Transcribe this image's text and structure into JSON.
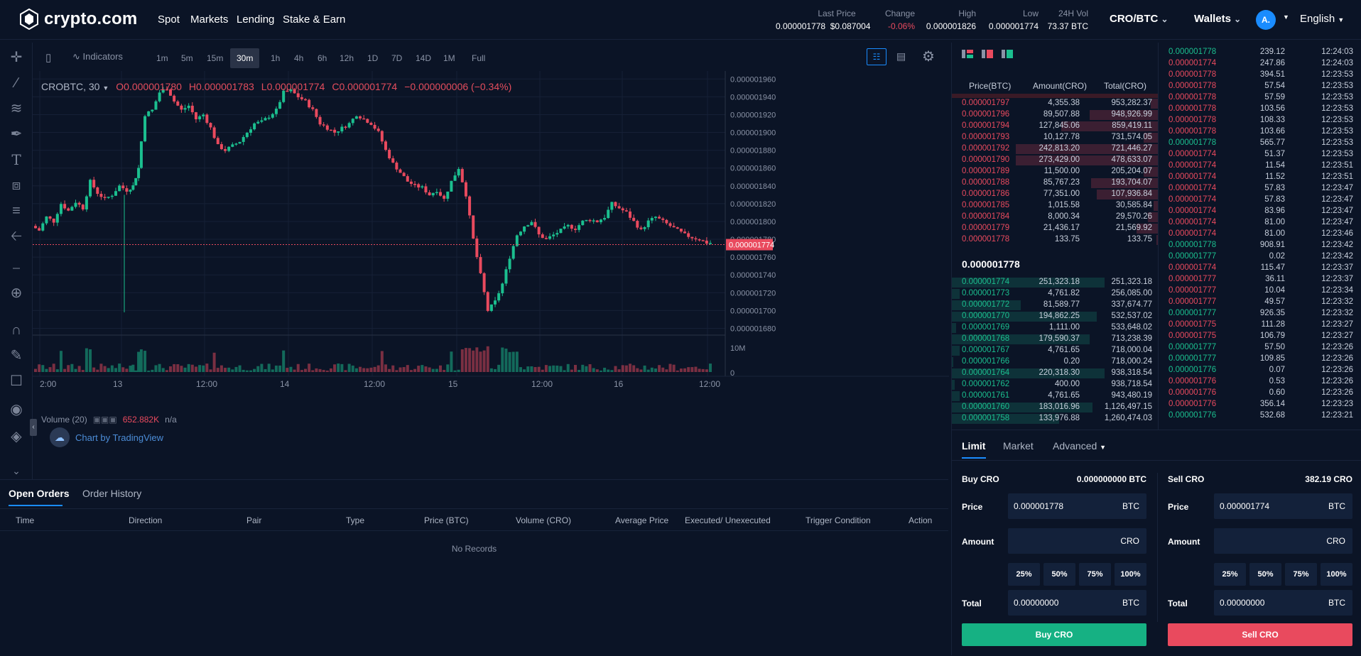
{
  "header": {
    "logo_text": "crypto.com",
    "nav": [
      "Spot",
      "Markets",
      "Lending",
      "Stake & Earn"
    ],
    "last_price_label": "Last Price",
    "last_price_btc": "0.000001778",
    "last_price_usd": "$0.087004",
    "change_label": "Change",
    "change_value": "-0.06%",
    "high_label": "High",
    "high_value": "0.000001826",
    "low_label": "Low",
    "low_value": "0.000001774",
    "vol_label": "24H Vol",
    "vol_value": "73.37 BTC",
    "pair": "CRO/BTC",
    "wallets": "Wallets",
    "avatar": "A.",
    "language": "English"
  },
  "chart_toolbar": {
    "indicators": "Indicators",
    "timeframes": [
      "1m",
      "5m",
      "15m",
      "30m",
      "1h",
      "4h",
      "6h",
      "12h",
      "1D",
      "7D",
      "14D",
      "1M",
      "Full"
    ],
    "active_timeframe": "30m"
  },
  "chart": {
    "symbol": "CROBTC, 30",
    "o": "O0.000001780",
    "h": "H0.000001783",
    "l": "L0.000001774",
    "c": "C0.000001774",
    "chg": "−0.000000006 (−0.34%)",
    "volume_label": "Volume (20)",
    "volume_value": "652.882K",
    "volume_na": "n/a",
    "tradingview": "Chart by TradingView",
    "current_price_tag": "0.000001774"
  },
  "chart_data": {
    "type": "candlestick",
    "y_ticks": [
      "0.000001960",
      "0.000001940",
      "0.000001920",
      "0.000001900",
      "0.000001880",
      "0.000001860",
      "0.000001840",
      "0.000001820",
      "0.000001800",
      "0.000001780",
      "0.000001760",
      "0.000001740",
      "0.000001720",
      "0.000001700",
      "0.000001680"
    ],
    "ylim": [
      1.67e-06,
      1.965e-06
    ],
    "x_ticks": [
      "2:00",
      "13",
      "12:00",
      "14",
      "12:00",
      "15",
      "12:00",
      "16",
      "12:00"
    ],
    "volume_ticks": [
      "10M",
      "0"
    ],
    "close_path": [
      [
        0,
        1.795
      ],
      [
        4,
        1.79
      ],
      [
        8,
        1.805
      ],
      [
        12,
        1.8
      ],
      [
        16,
        1.82
      ],
      [
        20,
        1.812
      ],
      [
        24,
        1.822
      ],
      [
        28,
        1.815
      ],
      [
        32,
        1.845
      ],
      [
        36,
        1.832
      ],
      [
        40,
        1.825
      ],
      [
        44,
        1.83
      ],
      [
        48,
        1.84
      ],
      [
        52,
        1.835
      ],
      [
        55,
        1.84
      ],
      [
        58,
        1.86
      ],
      [
        62,
        1.92
      ],
      [
        66,
        1.925
      ],
      [
        70,
        1.945
      ],
      [
        74,
        1.95
      ],
      [
        78,
        1.935
      ],
      [
        82,
        1.925
      ],
      [
        86,
        1.93
      ],
      [
        90,
        1.915
      ],
      [
        94,
        1.92
      ],
      [
        98,
        1.905
      ],
      [
        102,
        1.885
      ],
      [
        106,
        1.88
      ],
      [
        110,
        1.885
      ],
      [
        114,
        1.89
      ],
      [
        118,
        1.9
      ],
      [
        122,
        1.91
      ],
      [
        126,
        1.912
      ],
      [
        130,
        1.918
      ],
      [
        134,
        1.925
      ],
      [
        138,
        1.945
      ],
      [
        142,
        1.947
      ],
      [
        146,
        1.94
      ],
      [
        150,
        1.935
      ],
      [
        154,
        1.925
      ],
      [
        158,
        1.91
      ],
      [
        162,
        1.905
      ],
      [
        166,
        1.9
      ],
      [
        170,
        1.905
      ],
      [
        174,
        1.91
      ],
      [
        178,
        1.92
      ],
      [
        182,
        1.915
      ],
      [
        186,
        1.91
      ],
      [
        190,
        1.9
      ],
      [
        194,
        1.88
      ],
      [
        198,
        1.865
      ],
      [
        202,
        1.855
      ],
      [
        206,
        1.845
      ],
      [
        210,
        1.84
      ],
      [
        214,
        1.838
      ],
      [
        218,
        1.83
      ],
      [
        222,
        1.835
      ],
      [
        226,
        1.825
      ],
      [
        230,
        1.845
      ],
      [
        234,
        1.86
      ],
      [
        238,
        1.83
      ],
      [
        242,
        1.78
      ],
      [
        246,
        1.74
      ],
      [
        250,
        1.7
      ],
      [
        254,
        1.71
      ],
      [
        258,
        1.73
      ],
      [
        262,
        1.76
      ],
      [
        266,
        1.785
      ],
      [
        270,
        1.795
      ],
      [
        274,
        1.8
      ],
      [
        278,
        1.785
      ],
      [
        282,
        1.78
      ],
      [
        286,
        1.785
      ],
      [
        290,
        1.79
      ],
      [
        294,
        1.795
      ],
      [
        298,
        1.792
      ],
      [
        302,
        1.8
      ],
      [
        306,
        1.802
      ],
      [
        310,
        1.8
      ],
      [
        314,
        1.805
      ],
      [
        318,
        1.82
      ],
      [
        322,
        1.815
      ],
      [
        326,
        1.81
      ],
      [
        330,
        1.8
      ],
      [
        334,
        1.79
      ],
      [
        338,
        1.8
      ],
      [
        342,
        1.805
      ],
      [
        346,
        1.8
      ],
      [
        350,
        1.795
      ],
      [
        354,
        1.79
      ],
      [
        358,
        1.785
      ],
      [
        362,
        1.782
      ],
      [
        366,
        1.78
      ],
      [
        370,
        1.776
      ]
    ]
  },
  "bottom_panel": {
    "tabs": [
      "Open Orders",
      "Order History"
    ],
    "columns": [
      "Time",
      "Direction",
      "Pair",
      "Type",
      "Price (BTC)",
      "Volume (CRO)",
      "Average Price",
      "Executed/ Unexecuted",
      "Trigger Condition",
      "Action"
    ],
    "empty": "No Records"
  },
  "orderbook": {
    "headers": [
      "Price(BTC)",
      "Amount(CRO)",
      "Total(CRO)"
    ],
    "asks": [
      {
        "p": "0.000001797",
        "a": "4,355.38",
        "t": "953,282.37",
        "d": 0.05
      },
      {
        "p": "0.000001796",
        "a": "89,507.88",
        "t": "948,926.99",
        "d": 0.48
      },
      {
        "p": "0.000001794",
        "a": "127,845.06",
        "t": "859,419.11",
        "d": 0.68
      },
      {
        "p": "0.000001793",
        "a": "10,127.78",
        "t": "731,574.05",
        "d": 0.1
      },
      {
        "p": "0.000001792",
        "a": "242,813.20",
        "t": "721,446.27",
        "d": 1.0
      },
      {
        "p": "0.000001790",
        "a": "273,429.00",
        "t": "478,633.07",
        "d": 1.0
      },
      {
        "p": "0.000001789",
        "a": "11,500.00",
        "t": "205,204.07",
        "d": 0.1
      },
      {
        "p": "0.000001788",
        "a": "85,767.23",
        "t": "193,704.07",
        "d": 0.47
      },
      {
        "p": "0.000001786",
        "a": "77,351.00",
        "t": "107,936.84",
        "d": 0.43
      },
      {
        "p": "0.000001785",
        "a": "1,015.58",
        "t": "30,585.84",
        "d": 0.03
      },
      {
        "p": "0.000001784",
        "a": "8,000.34",
        "t": "29,570.26",
        "d": 0.07
      },
      {
        "p": "0.000001779",
        "a": "21,436.17",
        "t": "21,569.92",
        "d": 0.15
      },
      {
        "p": "0.000001778",
        "a": "133.75",
        "t": "133.75",
        "d": 0.01
      }
    ],
    "mid_price": "0.000001778",
    "bids": [
      {
        "p": "0.000001774",
        "a": "251,323.18",
        "t": "251,323.18",
        "d": 1.0
      },
      {
        "p": "0.000001773",
        "a": "4,761.82",
        "t": "256,085.00",
        "d": 0.05
      },
      {
        "p": "0.000001772",
        "a": "81,589.77",
        "t": "337,674.77",
        "d": 0.45
      },
      {
        "p": "0.000001770",
        "a": "194,862.25",
        "t": "532,537.02",
        "d": 0.95
      },
      {
        "p": "0.000001769",
        "a": "1,111.00",
        "t": "533,648.02",
        "d": 0.03
      },
      {
        "p": "0.000001768",
        "a": "179,590.37",
        "t": "713,238.39",
        "d": 0.9
      },
      {
        "p": "0.000001767",
        "a": "4,761.65",
        "t": "718,000.04",
        "d": 0.05
      },
      {
        "p": "0.000001766",
        "a": "0.20",
        "t": "718,000.24",
        "d": 0.01
      },
      {
        "p": "0.000001764",
        "a": "220,318.30",
        "t": "938,318.54",
        "d": 1.0
      },
      {
        "p": "0.000001762",
        "a": "400.00",
        "t": "938,718.54",
        "d": 0.02
      },
      {
        "p": "0.000001761",
        "a": "4,761.65",
        "t": "943,480.19",
        "d": 0.05
      },
      {
        "p": "0.000001760",
        "a": "183,016.96",
        "t": "1,126,497.15",
        "d": 0.92
      },
      {
        "p": "0.000001758",
        "a": "133,976.88",
        "t": "1,260,474.03",
        "d": 0.7
      }
    ]
  },
  "trades": [
    {
      "p": "0.000001778",
      "a": "239.12",
      "t": "12:24:03",
      "s": "buy"
    },
    {
      "p": "0.000001774",
      "a": "247.86",
      "t": "12:24:03",
      "s": "sell"
    },
    {
      "p": "0.000001778",
      "a": "394.51",
      "t": "12:23:53",
      "s": "sell"
    },
    {
      "p": "0.000001778",
      "a": "57.54",
      "t": "12:23:53",
      "s": "sell"
    },
    {
      "p": "0.000001778",
      "a": "57.59",
      "t": "12:23:53",
      "s": "sell"
    },
    {
      "p": "0.000001778",
      "a": "103.56",
      "t": "12:23:53",
      "s": "sell"
    },
    {
      "p": "0.000001778",
      "a": "108.33",
      "t": "12:23:53",
      "s": "sell"
    },
    {
      "p": "0.000001778",
      "a": "103.66",
      "t": "12:23:53",
      "s": "sell"
    },
    {
      "p": "0.000001778",
      "a": "565.77",
      "t": "12:23:53",
      "s": "buy"
    },
    {
      "p": "0.000001774",
      "a": "51.37",
      "t": "12:23:53",
      "s": "sell"
    },
    {
      "p": "0.000001774",
      "a": "11.54",
      "t": "12:23:51",
      "s": "sell"
    },
    {
      "p": "0.000001774",
      "a": "11.52",
      "t": "12:23:51",
      "s": "sell"
    },
    {
      "p": "0.000001774",
      "a": "57.83",
      "t": "12:23:47",
      "s": "sell"
    },
    {
      "p": "0.000001774",
      "a": "57.83",
      "t": "12:23:47",
      "s": "sell"
    },
    {
      "p": "0.000001774",
      "a": "83.96",
      "t": "12:23:47",
      "s": "sell"
    },
    {
      "p": "0.000001774",
      "a": "81.00",
      "t": "12:23:47",
      "s": "sell"
    },
    {
      "p": "0.000001774",
      "a": "81.00",
      "t": "12:23:46",
      "s": "sell"
    },
    {
      "p": "0.000001778",
      "a": "908.91",
      "t": "12:23:42",
      "s": "buy"
    },
    {
      "p": "0.000001777",
      "a": "0.02",
      "t": "12:23:42",
      "s": "buy"
    },
    {
      "p": "0.000001774",
      "a": "115.47",
      "t": "12:23:37",
      "s": "sell"
    },
    {
      "p": "0.000001777",
      "a": "36.11",
      "t": "12:23:37",
      "s": "sell"
    },
    {
      "p": "0.000001777",
      "a": "10.04",
      "t": "12:23:34",
      "s": "sell"
    },
    {
      "p": "0.000001777",
      "a": "49.57",
      "t": "12:23:32",
      "s": "sell"
    },
    {
      "p": "0.000001777",
      "a": "926.35",
      "t": "12:23:32",
      "s": "buy"
    },
    {
      "p": "0.000001775",
      "a": "111.28",
      "t": "12:23:27",
      "s": "sell"
    },
    {
      "p": "0.000001775",
      "a": "106.79",
      "t": "12:23:27",
      "s": "sell"
    },
    {
      "p": "0.000001777",
      "a": "57.50",
      "t": "12:23:26",
      "s": "buy"
    },
    {
      "p": "0.000001777",
      "a": "109.85",
      "t": "12:23:26",
      "s": "buy"
    },
    {
      "p": "0.000001776",
      "a": "0.07",
      "t": "12:23:26",
      "s": "buy"
    },
    {
      "p": "0.000001776",
      "a": "0.53",
      "t": "12:23:26",
      "s": "sell"
    },
    {
      "p": "0.000001776",
      "a": "0.60",
      "t": "12:23:26",
      "s": "sell"
    },
    {
      "p": "0.000001776",
      "a": "356.14",
      "t": "12:23:23",
      "s": "sell"
    },
    {
      "p": "0.000001776",
      "a": "532.68",
      "t": "12:23:21",
      "s": "buy"
    }
  ],
  "order_form": {
    "tabs": [
      "Limit",
      "Market",
      "Advanced"
    ],
    "buy": {
      "title": "Buy CRO",
      "balance": "0.000000000 BTC",
      "price_label": "Price",
      "price": "0.000001778",
      "price_unit": "BTC",
      "amount_label": "Amount",
      "amount_unit": "CRO",
      "pcts": [
        "25%",
        "50%",
        "75%",
        "100%"
      ],
      "total_label": "Total",
      "total": "0.00000000",
      "total_unit": "BTC",
      "button": "Buy CRO"
    },
    "sell": {
      "title": "Sell CRO",
      "balance": "382.19 CRO",
      "price_label": "Price",
      "price": "0.000001774",
      "price_unit": "BTC",
      "amount_label": "Amount",
      "amount_unit": "CRO",
      "pcts": [
        "25%",
        "50%",
        "75%",
        "100%"
      ],
      "total_label": "Total",
      "total": "0.00000000",
      "total_unit": "BTC",
      "button": "Sell CRO"
    }
  },
  "colors": {
    "up": "#1bbf8f",
    "down": "#e94a5e",
    "bg": "#0b1426",
    "panel": "#13213a"
  }
}
